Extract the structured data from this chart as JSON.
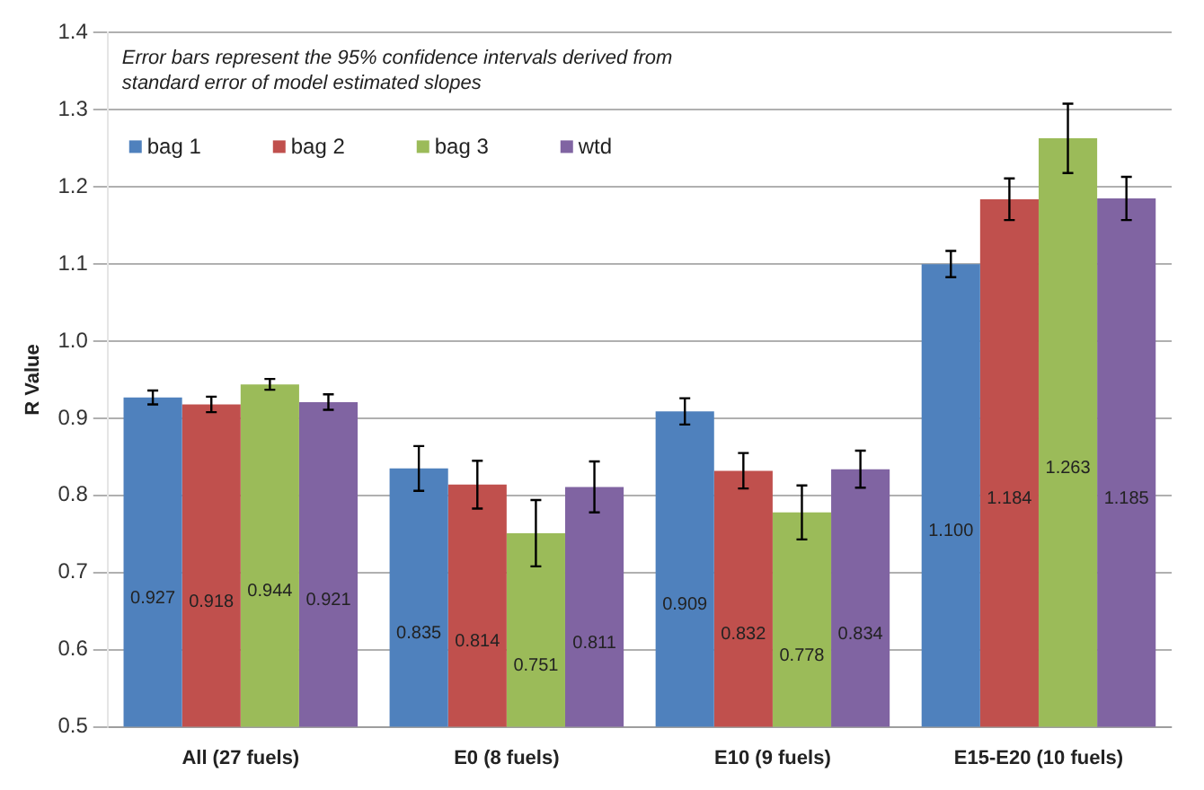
{
  "chart_data": {
    "type": "bar",
    "ylabel": "R Value",
    "annotations": [
      "Error bars represent the 95% confidence intervals derived from standard error of model estimated slopes"
    ],
    "categories": [
      "All (27 fuels)",
      "E0 (8 fuels)",
      "E10 (9 fuels)",
      "E15-E20 (10 fuels)"
    ],
    "series": [
      {
        "name": "bag 1",
        "color": "#4f81bd",
        "values": [
          0.927,
          0.835,
          0.909,
          1.1
        ],
        "value_labels": [
          "0.927",
          "0.835",
          "0.909",
          "1.100"
        ],
        "errors": [
          0.009,
          0.029,
          0.017,
          0.017
        ]
      },
      {
        "name": "bag 2",
        "color": "#c0504d",
        "values": [
          0.918,
          0.814,
          0.832,
          1.184
        ],
        "value_labels": [
          "0.918",
          "0.814",
          "0.832",
          "1.184"
        ],
        "errors": [
          0.01,
          0.031,
          0.023,
          0.027
        ]
      },
      {
        "name": "bag 3",
        "color": "#9bbb59",
        "values": [
          0.944,
          0.751,
          0.778,
          1.263
        ],
        "value_labels": [
          "0.944",
          "0.751",
          "0.778",
          "1.263"
        ],
        "errors": [
          0.007,
          0.043,
          0.035,
          0.045
        ]
      },
      {
        "name": "wtd",
        "color": "#8064a2",
        "values": [
          0.921,
          0.811,
          0.834,
          1.185
        ],
        "value_labels": [
          "0.921",
          "0.811",
          "0.834",
          "1.185"
        ],
        "errors": [
          0.01,
          0.033,
          0.024,
          0.028
        ]
      }
    ],
    "ylim": [
      0.5,
      1.4
    ],
    "yticks": [
      0.5,
      0.6,
      0.7,
      0.8,
      0.9,
      {
        "value": 1,
        "label": "1.0"
      },
      1.1,
      1.2,
      1.3,
      1.4
    ],
    "grid": "y",
    "legend": "top left"
  }
}
